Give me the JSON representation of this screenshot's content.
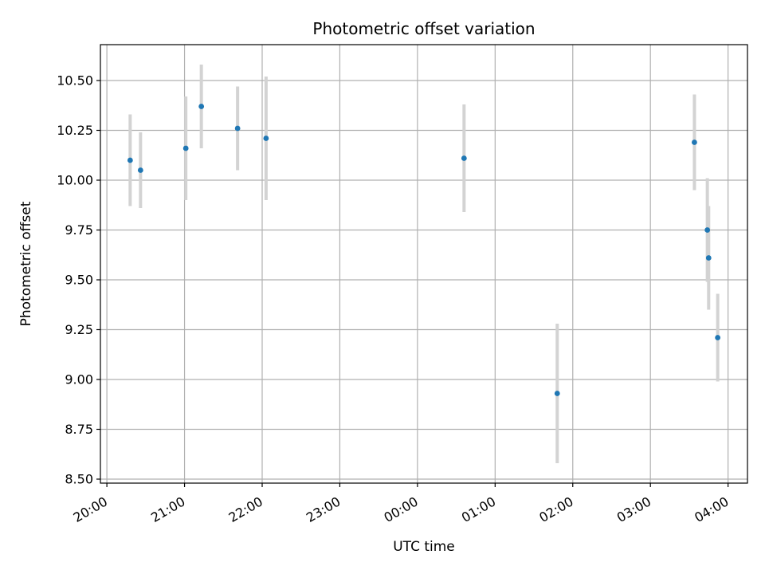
{
  "chart_data": {
    "type": "scatter",
    "title": "Photometric offset variation",
    "xlabel": "UTC time",
    "ylabel": "Photometric offset",
    "x_axis": "time",
    "xlim": [
      "19:55",
      "04:15"
    ],
    "ylim": [
      8.48,
      10.68
    ],
    "x_ticks": [
      "20:00",
      "21:00",
      "22:00",
      "23:00",
      "00:00",
      "01:00",
      "02:00",
      "03:00",
      "04:00"
    ],
    "y_ticks": [
      8.5,
      8.75,
      9.0,
      9.25,
      9.5,
      9.75,
      10.0,
      10.25,
      10.5
    ],
    "y_tick_labels": [
      "8.50",
      "8.75",
      "9.00",
      "9.25",
      "9.50",
      "9.75",
      "10.00",
      "10.25",
      "10.50"
    ],
    "grid": true,
    "marker_color": "#1f77b4",
    "errorbar_color": "#d3d3d3",
    "points": [
      {
        "x": "20:18",
        "y": 10.1,
        "err": 0.23
      },
      {
        "x": "20:26",
        "y": 10.05,
        "err": 0.19
      },
      {
        "x": "21:01",
        "y": 10.16,
        "err": 0.26
      },
      {
        "x": "21:13",
        "y": 10.37,
        "err": 0.21
      },
      {
        "x": "21:41",
        "y": 10.26,
        "err": 0.21
      },
      {
        "x": "22:03",
        "y": 10.21,
        "err": 0.31
      },
      {
        "x": "00:36",
        "y": 10.11,
        "err": 0.27
      },
      {
        "x": "01:48",
        "y": 8.93,
        "err": 0.35
      },
      {
        "x": "03:34",
        "y": 10.19,
        "err": 0.24
      },
      {
        "x": "03:44",
        "y": 9.75,
        "err": 0.26
      },
      {
        "x": "03:45",
        "y": 9.61,
        "err": 0.26
      },
      {
        "x": "03:52",
        "y": 9.21,
        "err": 0.22
      }
    ]
  }
}
